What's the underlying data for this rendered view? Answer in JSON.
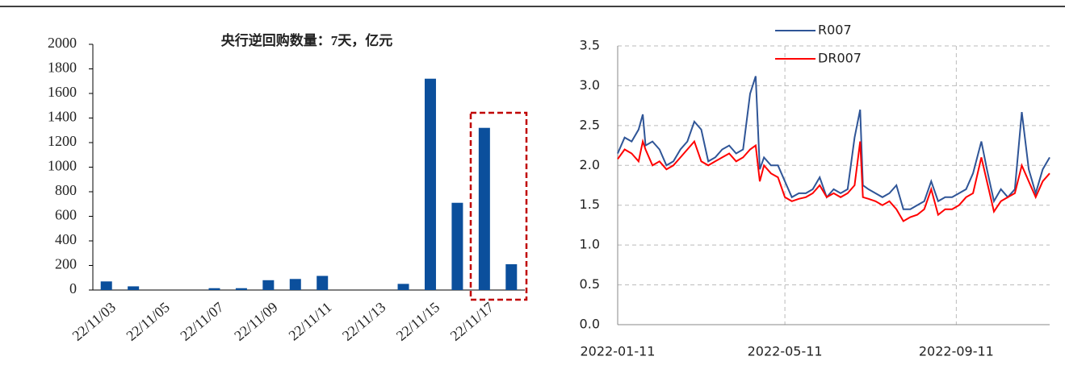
{
  "chart_data": [
    {
      "type": "bar",
      "title": "央行逆回购数量：7天，亿元",
      "categories": [
        "22/11/03",
        null,
        "22/11/05",
        null,
        "22/11/07",
        null,
        "22/11/09",
        null,
        "22/11/11",
        null,
        "22/11/13",
        null,
        "22/11/15",
        null,
        "22/11/17",
        null
      ],
      "values": [
        70,
        30,
        0,
        0,
        15,
        15,
        80,
        90,
        115,
        0,
        0,
        50,
        1720,
        710,
        1320,
        210
      ],
      "color": "#0b4f9c",
      "ylim": [
        0,
        2000
      ],
      "yticks": [
        0,
        200,
        400,
        600,
        800,
        1000,
        1200,
        1400,
        1600,
        1800,
        2000
      ]
    },
    {
      "type": "line",
      "x": [
        "2022-01-11",
        "2022-01-16",
        "2022-01-21",
        "2022-01-26",
        "2022-01-29",
        "2022-01-31",
        "2022-02-05",
        "2022-02-10",
        "2022-02-15",
        "2022-02-20",
        "2022-02-25",
        "2022-03-02",
        "2022-03-07",
        "2022-03-12",
        "2022-03-17",
        "2022-03-22",
        "2022-03-27",
        "2022-04-01",
        "2022-04-06",
        "2022-04-11",
        "2022-04-16",
        "2022-04-20",
        "2022-04-23",
        "2022-04-26",
        "2022-05-01",
        "2022-05-06",
        "2022-05-11",
        "2022-05-16",
        "2022-05-21",
        "2022-05-26",
        "2022-05-31",
        "2022-06-05",
        "2022-06-10",
        "2022-06-15",
        "2022-06-20",
        "2022-06-25",
        "2022-06-30",
        "2022-07-04",
        "2022-07-06",
        "2022-07-10",
        "2022-07-15",
        "2022-07-20",
        "2022-07-25",
        "2022-07-30",
        "2022-08-04",
        "2022-08-09",
        "2022-08-14",
        "2022-08-19",
        "2022-08-24",
        "2022-08-29",
        "2022-09-03",
        "2022-09-08",
        "2022-09-13",
        "2022-09-18",
        "2022-09-23",
        "2022-09-29",
        "2022-10-03",
        "2022-10-08",
        "2022-10-13",
        "2022-10-18",
        "2022-10-23",
        "2022-10-28",
        "2022-11-02",
        "2022-11-07",
        "2022-11-12",
        "2022-11-17"
      ],
      "series": [
        {
          "name": "R007",
          "color": "#2f5597",
          "values": [
            2.15,
            2.35,
            2.3,
            2.45,
            2.64,
            2.25,
            2.3,
            2.2,
            2.0,
            2.05,
            2.2,
            2.3,
            2.55,
            2.45,
            2.05,
            2.1,
            2.2,
            2.25,
            2.15,
            2.2,
            2.9,
            3.12,
            1.95,
            2.1,
            2.0,
            2.0,
            1.8,
            1.6,
            1.65,
            1.65,
            1.7,
            1.85,
            1.6,
            1.7,
            1.65,
            1.7,
            2.35,
            2.7,
            1.75,
            1.7,
            1.65,
            1.6,
            1.65,
            1.75,
            1.45,
            1.45,
            1.5,
            1.55,
            1.8,
            1.55,
            1.6,
            1.6,
            1.65,
            1.7,
            1.9,
            2.3,
            1.95,
            1.55,
            1.7,
            1.6,
            1.7,
            2.67,
            1.95,
            1.65,
            1.95,
            2.1
          ]
        },
        {
          "name": "DR007",
          "color": "#ff0000",
          "values": [
            2.08,
            2.2,
            2.15,
            2.05,
            2.3,
            2.2,
            2.0,
            2.05,
            1.95,
            2.0,
            2.1,
            2.2,
            2.3,
            2.05,
            2.0,
            2.05,
            2.1,
            2.15,
            2.05,
            2.1,
            2.2,
            2.25,
            1.8,
            2.0,
            1.9,
            1.85,
            1.6,
            1.55,
            1.58,
            1.6,
            1.65,
            1.75,
            1.6,
            1.65,
            1.6,
            1.65,
            1.75,
            2.3,
            1.6,
            1.58,
            1.55,
            1.5,
            1.55,
            1.45,
            1.3,
            1.35,
            1.38,
            1.45,
            1.7,
            1.38,
            1.45,
            1.45,
            1.5,
            1.6,
            1.65,
            2.1,
            1.8,
            1.42,
            1.55,
            1.6,
            1.65,
            2.0,
            1.8,
            1.6,
            1.8,
            1.9
          ]
        }
      ],
      "xlim": [
        "2022-01-11",
        "2022-11-17"
      ],
      "xticks": [
        "2022-01-11",
        "2022-05-11",
        "2022-09-11"
      ],
      "ylim": [
        0,
        3.5
      ],
      "yticks": [
        {
          "value": 0,
          "label": "0.0"
        },
        {
          "value": 0.5,
          "label": "0.5"
        },
        {
          "value": 1,
          "label": "1.0"
        },
        {
          "value": 1.5,
          "label": "1.5"
        },
        {
          "value": 2,
          "label": "2.0"
        },
        {
          "value": 2.5,
          "label": "2.5"
        },
        {
          "value": 3,
          "label": "3.0"
        },
        {
          "value": 3.5,
          "label": "3.5"
        }
      ],
      "grid": true,
      "legend": "top"
    }
  ]
}
